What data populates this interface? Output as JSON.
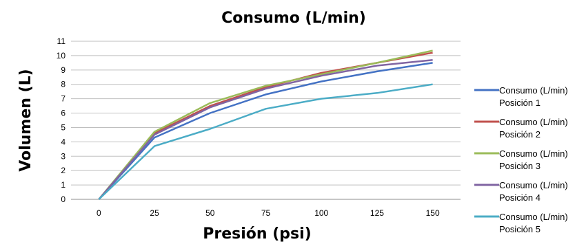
{
  "chart_data": {
    "type": "line",
    "title": "Consumo (L/min)",
    "xlabel": "Presión (psi)",
    "ylabel": "Volumen (L)",
    "x": [
      0,
      25,
      50,
      75,
      100,
      125,
      150
    ],
    "ylim": [
      0,
      11
    ],
    "yticks": [
      0,
      1,
      2,
      3,
      4,
      5,
      6,
      7,
      8,
      9,
      10,
      11
    ],
    "grid": true,
    "legend_position": "right",
    "series": [
      {
        "name_line1": "Consumo (L/min)",
        "name_line2": "Posición 1",
        "color": "#4472c4",
        "values": [
          0,
          4.3,
          6.0,
          7.3,
          8.2,
          8.9,
          9.5
        ]
      },
      {
        "name_line1": "Consumo (L/min)",
        "name_line2": "Posición 2",
        "color": "#c0504d",
        "values": [
          0,
          4.6,
          6.5,
          7.8,
          8.8,
          9.5,
          10.2
        ]
      },
      {
        "name_line1": "Consumo (L/min)",
        "name_line2": "Posición 3",
        "color": "#9bbb59",
        "values": [
          0,
          4.7,
          6.7,
          7.9,
          8.7,
          9.5,
          10.35
        ]
      },
      {
        "name_line1": "Consumo (L/min)",
        "name_line2": "Posición 4",
        "color": "#8064a2",
        "values": [
          0,
          4.5,
          6.4,
          7.7,
          8.6,
          9.3,
          9.7
        ]
      },
      {
        "name_line1": "Consumo (L/min)",
        "name_line2": "Posición 5",
        "color": "#4bacc6",
        "values": [
          0,
          3.7,
          4.9,
          6.3,
          7.0,
          7.4,
          8.0
        ]
      }
    ]
  }
}
